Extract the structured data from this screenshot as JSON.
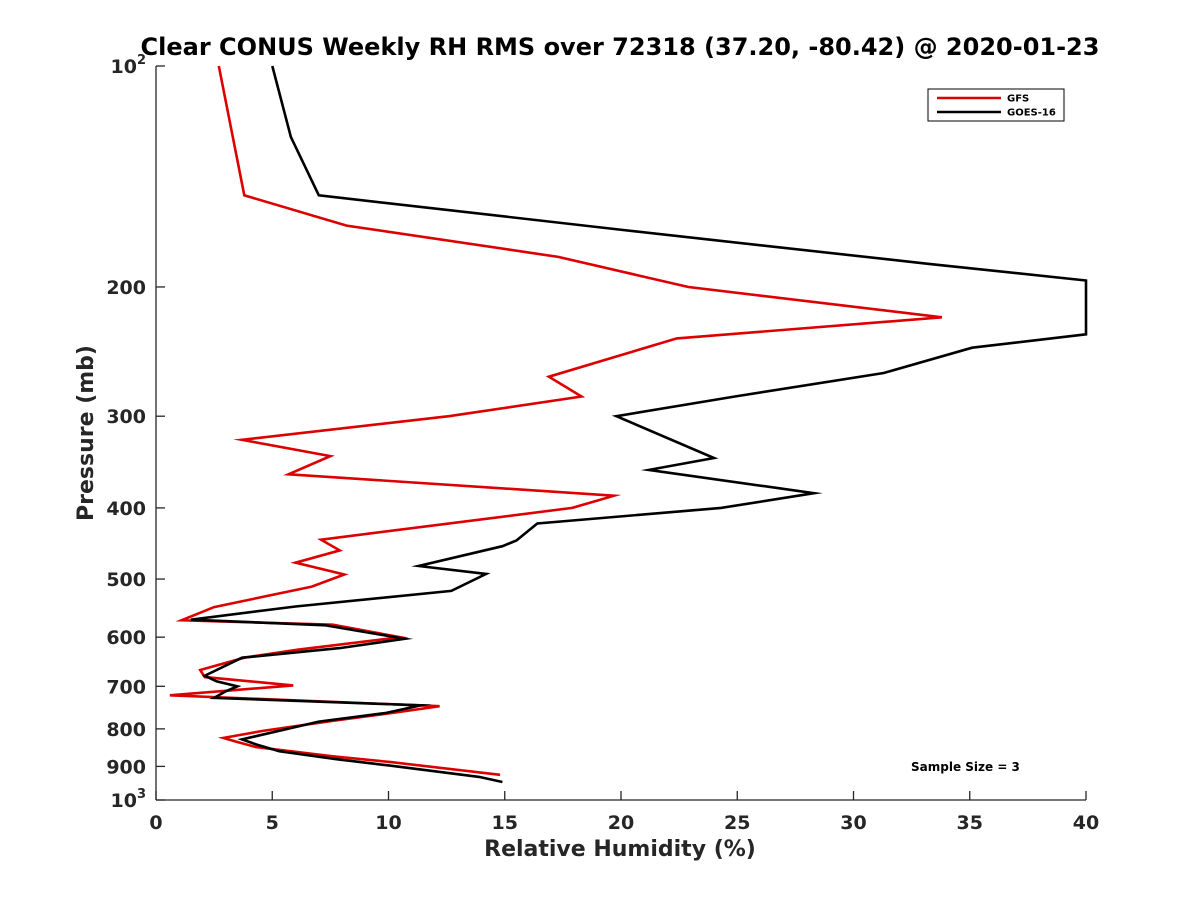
{
  "chart_data": {
    "type": "line",
    "title": "Clear CONUS Weekly RH RMS over 72318 (37.20, -80.42) @ 2020-01-23",
    "xlabel": "Relative Humidity (%)",
    "ylabel": "Pressure (mb)",
    "xlim": [
      0,
      40
    ],
    "ylim": [
      100,
      1000
    ],
    "y_scale": "log",
    "y_reversed": true,
    "grid": false,
    "legend_position": "top-right",
    "x_ticks": [
      0,
      5,
      10,
      15,
      20,
      25,
      30,
      35,
      40
    ],
    "x_tick_labels": [
      "0",
      "5",
      "10",
      "15",
      "20",
      "25",
      "30",
      "35",
      "40"
    ],
    "y_ticks": [
      200,
      300,
      400,
      500,
      600,
      700,
      800,
      900
    ],
    "y_tick_labels": [
      "200",
      "300",
      "400",
      "500",
      "600",
      "700",
      "800",
      "900"
    ],
    "y_bound_ticks": [
      {
        "value": 100,
        "base": "10",
        "exp": "2"
      },
      {
        "value": 1000,
        "base": "10",
        "exp": "3"
      }
    ],
    "annotation": "Sample Size = 3",
    "series": [
      {
        "name": "GFS",
        "color": "#dd0000",
        "points": [
          [
            2.7,
            100
          ],
          [
            3.8,
            150
          ],
          [
            8.2,
            165
          ],
          [
            17.3,
            182
          ],
          [
            22.9,
            200
          ],
          [
            33.8,
            220
          ],
          [
            22.4,
            235
          ],
          [
            16.9,
            265
          ],
          [
            18.3,
            282
          ],
          [
            12.6,
            300
          ],
          [
            3.7,
            323
          ],
          [
            7.5,
            340
          ],
          [
            5.7,
            360
          ],
          [
            19.7,
            385
          ],
          [
            17.9,
            400
          ],
          [
            7.1,
            442
          ],
          [
            7.9,
            457
          ],
          [
            6.0,
            475
          ],
          [
            8.1,
            493
          ],
          [
            6.7,
            512
          ],
          [
            2.5,
            546
          ],
          [
            1.1,
            569
          ],
          [
            7.6,
            577
          ],
          [
            10.5,
            600
          ],
          [
            6.1,
            624
          ],
          [
            3.8,
            640
          ],
          [
            1.9,
            665
          ],
          [
            2.1,
            680
          ],
          [
            5.9,
            698
          ],
          [
            0.6,
            720
          ],
          [
            12.2,
            745
          ],
          [
            10.3,
            760
          ],
          [
            7.6,
            780
          ],
          [
            4.6,
            805
          ],
          [
            2.9,
            823
          ],
          [
            3.4,
            832
          ],
          [
            4.3,
            847
          ],
          [
            7.6,
            872
          ],
          [
            10.1,
            888
          ],
          [
            14.8,
            924
          ]
        ]
      },
      {
        "name": "GOES-16",
        "color": "#000000",
        "points": [
          [
            5.0,
            100
          ],
          [
            5.8,
            125
          ],
          [
            7.0,
            150
          ],
          [
            19.9,
            167
          ],
          [
            33.2,
            186
          ],
          [
            40.0,
            196
          ],
          [
            40.0,
            232
          ],
          [
            35.1,
            242
          ],
          [
            31.3,
            262
          ],
          [
            24.9,
            282
          ],
          [
            19.8,
            300
          ],
          [
            24.0,
            342
          ],
          [
            21.2,
            355
          ],
          [
            28.3,
            382
          ],
          [
            24.3,
            400
          ],
          [
            16.4,
            420
          ],
          [
            15.5,
            443
          ],
          [
            14.9,
            451
          ],
          [
            11.3,
            480
          ],
          [
            14.2,
            492
          ],
          [
            12.7,
            519
          ],
          [
            6.0,
            545
          ],
          [
            1.5,
            568
          ],
          [
            7.3,
            578
          ],
          [
            10.7,
            603
          ],
          [
            7.9,
            621
          ],
          [
            3.7,
            640
          ],
          [
            2.1,
            677
          ],
          [
            2.6,
            689
          ],
          [
            3.5,
            700
          ],
          [
            3.0,
            711
          ],
          [
            2.5,
            726
          ],
          [
            11.4,
            743
          ],
          [
            9.9,
            761
          ],
          [
            7.0,
            782
          ],
          [
            3.7,
            827
          ],
          [
            4.3,
            840
          ],
          [
            5.3,
            858
          ],
          [
            7.8,
            880
          ],
          [
            10.1,
            898
          ],
          [
            13.9,
            930
          ],
          [
            14.9,
            945
          ]
        ]
      }
    ]
  }
}
